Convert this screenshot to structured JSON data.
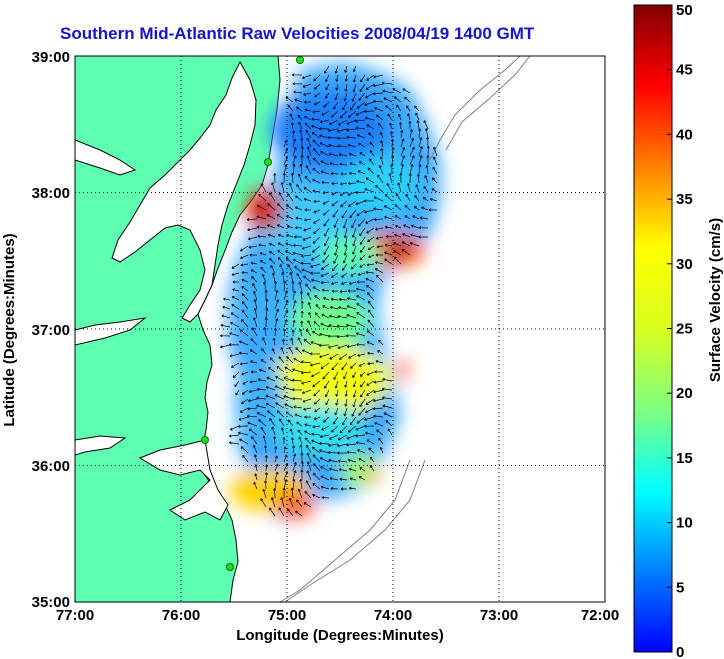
{
  "title": "Southern Mid-Atlantic Raw Velocities 2008/04/19 1400 GMT",
  "x_axis": {
    "label": "Longitude (Degrees:Minutes)",
    "ticks": [
      "77:00",
      "76:00",
      "75:00",
      "74:00",
      "73:00",
      "72:00"
    ]
  },
  "y_axis": {
    "label": "Latitude (Degrees:Minutes)",
    "ticks": [
      "39:00",
      "38:00",
      "37:00",
      "36:00",
      "35:00"
    ]
  },
  "colorbar": {
    "label": "Surface Velocity (cm/s)",
    "ticks": [
      "50",
      "45",
      "40",
      "35",
      "30",
      "25",
      "20",
      "15",
      "10",
      "5",
      "0"
    ],
    "range": [
      0,
      50
    ],
    "colormap": "jet"
  },
  "colors": {
    "land": "#5effb0",
    "title": "#1414d2",
    "coastline": "#000000",
    "bathymetry": "#808080"
  },
  "map": {
    "lon_range": [
      -77,
      -72
    ],
    "lat_range": [
      35,
      39
    ],
    "grid": true,
    "stations": 4
  }
}
